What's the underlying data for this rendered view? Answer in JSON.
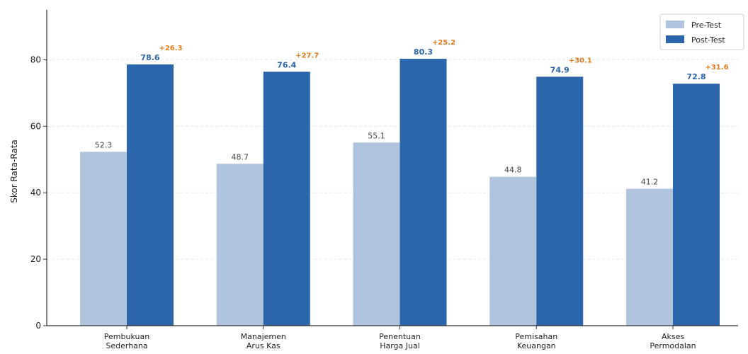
{
  "chart_data": {
    "type": "bar",
    "title": "",
    "xlabel": "",
    "ylabel": "Skor Rata-Rata",
    "ylim": [
      0,
      95
    ],
    "yticks": [
      0,
      20,
      40,
      60,
      80
    ],
    "grid": "horizontal",
    "legend_position": "top-right",
    "categories": [
      [
        "Pembukuan",
        "Sederhana"
      ],
      [
        "Manajemen",
        "Arus Kas"
      ],
      [
        "Penentuan",
        "Harga Jual"
      ],
      [
        "Pemisahan",
        "Keuangan"
      ],
      [
        "Akses",
        "Permodalan"
      ]
    ],
    "series": [
      {
        "name": "Pre-Test",
        "color": "#b0c4de",
        "values": [
          52.3,
          48.7,
          55.1,
          44.8,
          41.2
        ]
      },
      {
        "name": "Post-Test",
        "color": "#2b65ac",
        "values": [
          78.6,
          76.4,
          80.3,
          74.9,
          72.8
        ]
      }
    ],
    "pre_labels": [
      "52.3",
      "48.7",
      "55.1",
      "44.8",
      "41.2"
    ],
    "post_labels": [
      "78.6",
      "76.4",
      "80.3",
      "74.9",
      "72.8"
    ],
    "differences": [
      26.3,
      27.7,
      25.2,
      30.1,
      31.6
    ],
    "diff_labels": [
      "+26.3",
      "+27.7",
      "+25.2",
      "+30.1",
      "+31.6"
    ],
    "colors": {
      "diff": "#e07b1c",
      "post_label": "#2b65ac"
    }
  }
}
